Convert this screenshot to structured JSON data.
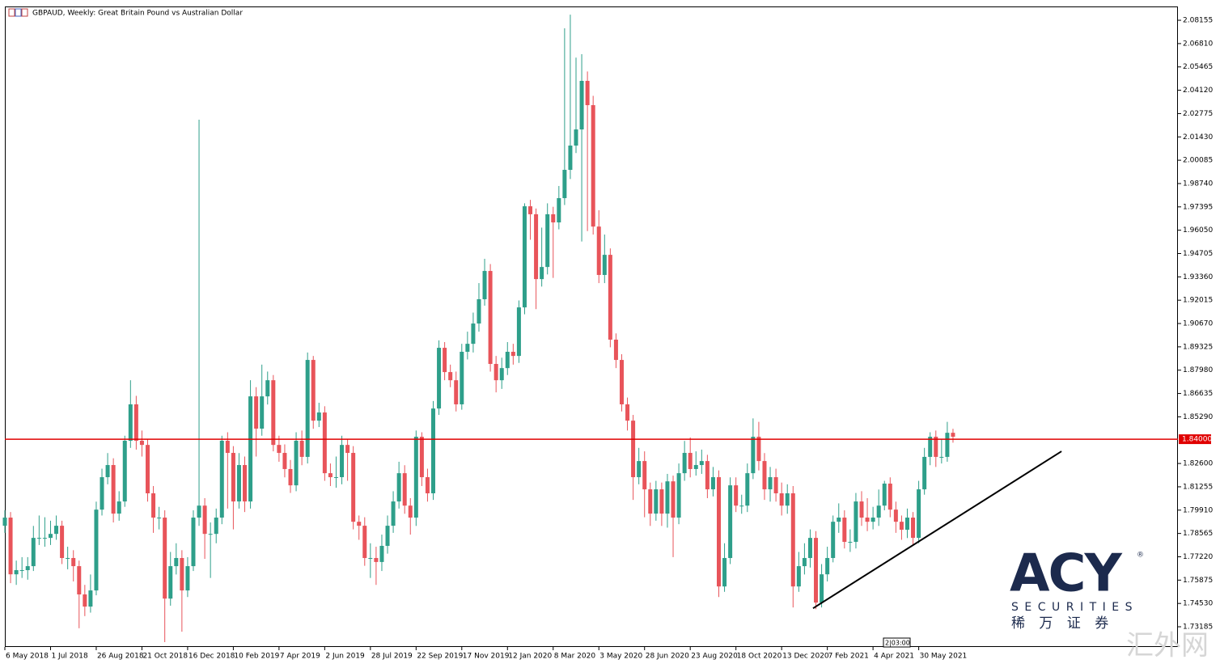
{
  "chart_data": {
    "type": "candlestick",
    "title": "GBPAUD, Weekly:  Great Britain Pound vs Australian Dollar",
    "categories": [
      "6 May 2018",
      null,
      null,
      null,
      null,
      null,
      null,
      null,
      "1 Jul 2018",
      null,
      null,
      null,
      null,
      null,
      null,
      null,
      "26 Aug 2018",
      null,
      null,
      null,
      null,
      null,
      null,
      null,
      "21 Oct 2018",
      null,
      null,
      null,
      null,
      null,
      null,
      null,
      "16 Dec 2018",
      null,
      null,
      null,
      null,
      null,
      null,
      null,
      "10 Feb 2019",
      null,
      null,
      null,
      null,
      null,
      null,
      null,
      "7 Apr 2019",
      null,
      null,
      null,
      null,
      null,
      null,
      null,
      "2 Jun 2019",
      null,
      null,
      null,
      null,
      null,
      null,
      null,
      "28 Jul 2019",
      null,
      null,
      null,
      null,
      null,
      null,
      null,
      "22 Sep 2019",
      null,
      null,
      null,
      null,
      null,
      null,
      null,
      "17 Nov 2019",
      null,
      null,
      null,
      null,
      null,
      null,
      null,
      "12 Jan 2020",
      null,
      null,
      null,
      null,
      null,
      null,
      null,
      "8 Mar 2020",
      null,
      null,
      null,
      null,
      null,
      null,
      null,
      "3 May 2020",
      null,
      null,
      null,
      null,
      null,
      null,
      null,
      "28 Jun 2020",
      null,
      null,
      null,
      null,
      null,
      null,
      null,
      "23 Aug 2020",
      null,
      null,
      null,
      null,
      null,
      null,
      null,
      "18 Oct 2020",
      null,
      null,
      null,
      null,
      null,
      null,
      null,
      "13 Dec 2020",
      null,
      null,
      null,
      null,
      null,
      null,
      null,
      "7 Feb 2021",
      null,
      null,
      null,
      null,
      null,
      null,
      null,
      "4 Apr 2021",
      null,
      null,
      null,
      null,
      null,
      null,
      null,
      "30 May 2021",
      null,
      null,
      null,
      null,
      null,
      null
    ],
    "open": [
      1.7901,
      1.7948,
      1.7621,
      1.7645,
      1.7645,
      1.7668,
      1.7831,
      1.7831,
      1.7831,
      1.7854,
      1.7901,
      1.7715,
      1.7715,
      1.7668,
      1.7505,
      1.7435,
      1.7528,
      1.7994,
      1.8181,
      1.8251,
      1.7971,
      1.8041,
      1.8391,
      1.8601,
      1.8391,
      1.8367,
      1.8088,
      1.7948,
      1.7948,
      1.7481,
      1.7668,
      1.7715,
      1.7528,
      1.7668,
      1.7948,
      1.8017,
      1.7854,
      1.7854,
      1.7948,
      1.8391,
      1.8321,
      1.8041,
      1.8251,
      1.8041,
      1.8647,
      1.8461,
      1.8647,
      1.874,
      1.8367,
      1.8321,
      1.8228,
      1.8134,
      1.8391,
      1.8298,
      1.8857,
      1.8507,
      1.8554,
      1.8204,
      1.8181,
      1.8181,
      1.8367,
      1.8321,
      1.7924,
      1.7901,
      1.7715,
      1.7715,
      1.7692,
      1.7785,
      1.7901,
      1.8041,
      1.8204,
      1.8017,
      1.7948,
      1.8414,
      1.8181,
      1.8088,
      1.8577,
      1.8927,
      1.8787,
      1.874,
      1.8601,
      1.8904,
      1.895,
      1.9067,
      1.9207,
      1.937,
      1.8834,
      1.874,
      1.881,
      1.8904,
      1.888,
      1.916,
      1.9743,
      1.9697,
      1.9323,
      1.9393,
      1.9697,
      1.965,
      1.979,
      1.9953,
      2.0093,
      2.0186,
      2.0466,
      2.0326,
      1.9626,
      1.9347,
      1.9463,
      1.8974,
      1.8857,
      1.8601,
      1.8507,
      1.8181,
      1.8274,
      1.8111,
      1.7971,
      1.8111,
      1.7971,
      1.8157,
      1.7948,
      1.8204,
      1.8321,
      1.8228,
      1.8251,
      1.8274,
      1.8111,
      1.8181,
      1.7551,
      1.7715,
      1.8134,
      1.8017,
      1.8017,
      1.8204,
      1.8414,
      1.8274,
      1.8111,
      1.8181,
      1.8088,
      1.8017,
      1.8088,
      1.7551,
      1.7668,
      1.7715,
      1.7831,
      1.7458,
      1.7621,
      1.7715,
      1.7924,
      1.7948,
      1.7808,
      1.7808,
      1.8041,
      1.7948,
      1.7924,
      1.7948,
      1.8017,
      1.8144,
      1.7994,
      1.7924,
      1.7878,
      1.7948,
      1.7831,
      1.8111,
      1.8298,
      1.8414,
      1.8298,
      1.8298,
      1.8437
    ],
    "high": [
      1.799,
      1.798,
      1.77,
      1.772,
      1.772,
      1.79,
      1.796,
      1.795,
      1.793,
      1.796,
      1.793,
      1.778,
      1.776,
      1.77,
      1.756,
      1.762,
      1.804,
      1.823,
      1.832,
      1.829,
      1.81,
      1.842,
      1.874,
      1.865,
      1.845,
      1.84,
      1.813,
      1.801,
      1.799,
      1.775,
      1.78,
      1.776,
      1.772,
      1.799,
      2.0242,
      1.806,
      1.792,
      1.8,
      1.842,
      1.844,
      1.836,
      1.832,
      1.83,
      1.874,
      1.87,
      1.883,
      1.879,
      1.877,
      1.842,
      1.837,
      1.828,
      1.844,
      1.845,
      1.89,
      1.888,
      1.861,
      1.859,
      1.826,
      1.83,
      1.842,
      1.84,
      1.836,
      1.796,
      1.795,
      1.78,
      1.778,
      1.785,
      1.796,
      1.81,
      1.827,
      1.825,
      1.806,
      1.845,
      1.844,
      1.823,
      1.862,
      1.897,
      1.896,
      1.883,
      1.879,
      1.895,
      1.902,
      1.913,
      1.93,
      1.944,
      1.941,
      1.888,
      1.887,
      1.896,
      1.895,
      1.92,
      1.976,
      1.978,
      1.973,
      1.962,
      1.976,
      1.974,
      1.986,
      2.0769,
      2.0848,
      2.06,
      2.062,
      2.052,
      2.038,
      1.972,
      1.958,
      1.95,
      1.901,
      1.889,
      1.864,
      1.854,
      1.835,
      1.833,
      1.815,
      1.816,
      1.815,
      1.82,
      1.819,
      1.826,
      1.839,
      1.841,
      1.833,
      1.834,
      1.831,
      1.824,
      1.822,
      1.78,
      1.818,
      1.818,
      1.808,
      1.826,
      1.852,
      1.85,
      1.832,
      1.824,
      1.823,
      1.815,
      1.814,
      1.813,
      1.775,
      1.78,
      1.788,
      1.787,
      1.768,
      1.778,
      1.796,
      1.803,
      1.799,
      1.788,
      1.809,
      1.81,
      1.806,
      1.801,
      1.811,
      1.816,
      1.818,
      1.804,
      1.796,
      1.8,
      1.798,
      1.816,
      1.835,
      1.844,
      1.845,
      1.84,
      1.85,
      1.846
    ],
    "low": [
      1.786,
      1.757,
      1.756,
      1.76,
      1.759,
      1.764,
      1.779,
      1.778,
      1.779,
      1.782,
      1.768,
      1.765,
      1.758,
      1.731,
      1.738,
      1.74,
      1.75,
      1.796,
      1.814,
      1.792,
      1.793,
      1.801,
      1.835,
      1.834,
      1.83,
      1.804,
      1.786,
      1.788,
      1.723,
      1.744,
      1.762,
      1.729,
      1.749,
      1.764,
      1.79,
      1.771,
      1.76,
      1.78,
      1.791,
      1.8,
      1.788,
      1.8,
      1.798,
      1.8,
      1.83,
      1.842,
      1.86,
      1.833,
      1.827,
      1.818,
      1.809,
      1.81,
      1.825,
      1.826,
      1.846,
      1.847,
      1.816,
      1.813,
      1.812,
      1.814,
      1.816,
      1.788,
      1.782,
      1.767,
      1.76,
      1.756,
      1.764,
      1.774,
      1.786,
      1.8,
      1.797,
      1.785,
      1.79,
      1.813,
      1.804,
      1.805,
      1.854,
      1.874,
      1.87,
      1.856,
      1.857,
      1.886,
      1.89,
      1.902,
      1.917,
      1.879,
      1.867,
      1.869,
      1.877,
      1.883,
      1.884,
      1.912,
      1.955,
      1.915,
      1.928,
      1.935,
      1.933,
      1.961,
      1.975,
      1.99,
      2.005,
      1.954,
      1.96,
      1.958,
      1.93,
      1.93,
      1.893,
      1.881,
      1.856,
      1.845,
      1.805,
      1.814,
      1.795,
      1.79,
      1.793,
      1.79,
      1.789,
      1.772,
      1.791,
      1.816,
      1.818,
      1.819,
      1.82,
      1.806,
      1.807,
      1.749,
      1.752,
      1.768,
      1.798,
      1.797,
      1.798,
      1.817,
      1.822,
      1.805,
      1.804,
      1.804,
      1.796,
      1.797,
      1.743,
      1.752,
      1.762,
      1.766,
      1.742,
      1.743,
      1.758,
      1.769,
      1.786,
      1.777,
      1.775,
      1.777,
      1.79,
      1.787,
      1.788,
      1.79,
      1.799,
      1.795,
      1.786,
      1.782,
      1.783,
      1.779,
      1.78,
      1.808,
      1.825,
      1.824,
      1.826,
      1.827,
      1.838
    ],
    "close": [
      1.7948,
      1.7621,
      1.7645,
      1.7645,
      1.7668,
      1.7831,
      1.7831,
      1.7831,
      1.7854,
      1.7901,
      1.7715,
      1.7715,
      1.7668,
      1.7505,
      1.7435,
      1.7528,
      1.7994,
      1.8181,
      1.8251,
      1.7971,
      1.8041,
      1.8391,
      1.8601,
      1.8391,
      1.8367,
      1.8088,
      1.7948,
      1.7948,
      1.7481,
      1.7668,
      1.7715,
      1.7528,
      1.7668,
      1.7948,
      1.8017,
      1.7854,
      1.7854,
      1.7948,
      1.8391,
      1.8321,
      1.8041,
      1.8251,
      1.8041,
      1.8647,
      1.8461,
      1.8647,
      1.874,
      1.8367,
      1.8321,
      1.8228,
      1.8134,
      1.8391,
      1.8298,
      1.8857,
      1.8507,
      1.8554,
      1.8204,
      1.8181,
      1.8181,
      1.8367,
      1.8321,
      1.7924,
      1.7901,
      1.7715,
      1.7715,
      1.7692,
      1.7785,
      1.7901,
      1.8041,
      1.8204,
      1.8017,
      1.7948,
      1.8414,
      1.8181,
      1.8088,
      1.8577,
      1.8927,
      1.8787,
      1.874,
      1.8601,
      1.8904,
      1.895,
      1.9067,
      1.9207,
      1.937,
      1.8834,
      1.874,
      1.881,
      1.8904,
      1.888,
      1.916,
      1.9743,
      1.9697,
      1.9323,
      1.9393,
      1.9697,
      1.965,
      1.979,
      1.9953,
      2.0093,
      2.0186,
      2.0466,
      2.0326,
      1.9626,
      1.9347,
      1.9463,
      1.8974,
      1.8857,
      1.8601,
      1.8507,
      1.8181,
      1.8274,
      1.8111,
      1.7971,
      1.8111,
      1.7971,
      1.8157,
      1.7948,
      1.8204,
      1.8321,
      1.8228,
      1.8251,
      1.8274,
      1.8111,
      1.8181,
      1.7551,
      1.7715,
      1.8134,
      1.8017,
      1.8017,
      1.8204,
      1.8414,
      1.8274,
      1.8111,
      1.8181,
      1.8088,
      1.8017,
      1.8088,
      1.7551,
      1.7668,
      1.7715,
      1.7831,
      1.7458,
      1.7621,
      1.7715,
      1.7924,
      1.7948,
      1.7808,
      1.7808,
      1.8041,
      1.7948,
      1.7924,
      1.7948,
      1.8017,
      1.8144,
      1.7994,
      1.7924,
      1.7878,
      1.7948,
      1.7831,
      1.8111,
      1.8298,
      1.8414,
      1.8298,
      1.8298,
      1.8437,
      1.8414
    ],
    "up_color": "#2e9f8a",
    "down_color": "#e8545a",
    "ylim": [
      1.7202,
      2.0895
    ],
    "yticks": [
      {
        "value": 2.08155,
        "label": "2.08155"
      },
      {
        "value": 2.0681,
        "label": "2.06810"
      },
      {
        "value": 2.05465,
        "label": "2.05465"
      },
      {
        "value": 2.0412,
        "label": "2.04120"
      },
      {
        "value": 2.02775,
        "label": "2.02775"
      },
      {
        "value": 2.0143,
        "label": "2.01430"
      },
      {
        "value": 2.00085,
        "label": "2.00085"
      },
      {
        "value": 1.9874,
        "label": "1.98740"
      },
      {
        "value": 1.97395,
        "label": "1.97395"
      },
      {
        "value": 1.9605,
        "label": "1.96050"
      },
      {
        "value": 1.94705,
        "label": "1.94705"
      },
      {
        "value": 1.9336,
        "label": "1.93360"
      },
      {
        "value": 1.92015,
        "label": "1.92015"
      },
      {
        "value": 1.9067,
        "label": "1.90670"
      },
      {
        "value": 1.89325,
        "label": "1.89325"
      },
      {
        "value": 1.8798,
        "label": "1.87980"
      },
      {
        "value": 1.86635,
        "label": "1.86635"
      },
      {
        "value": 1.8529,
        "label": "1.85290"
      },
      {
        "value": 1.826,
        "label": "1.82600"
      },
      {
        "value": 1.81255,
        "label": "1.81255"
      },
      {
        "value": 1.7991,
        "label": "1.79910"
      },
      {
        "value": 1.78565,
        "label": "1.78565"
      },
      {
        "value": 1.7722,
        "label": "1.77220"
      },
      {
        "value": 1.75875,
        "label": "1.75875"
      },
      {
        "value": 1.7453,
        "label": "1.74530"
      },
      {
        "value": 1.73185,
        "label": "1.73185"
      }
    ],
    "grid": false,
    "hline": {
      "value": 1.84,
      "label": "1.84000",
      "color": "#e00000"
    },
    "trendline": {
      "x": [
        141.5,
        185
      ],
      "y": [
        1.7425,
        1.833
      ],
      "color": "#000000"
    },
    "timer": "2|03:00"
  },
  "logo": {
    "brand": "ACY",
    "mark": "®",
    "sub": "SECURITIES",
    "chinese": "稀 万 证 券"
  },
  "watermark": "汇外网"
}
